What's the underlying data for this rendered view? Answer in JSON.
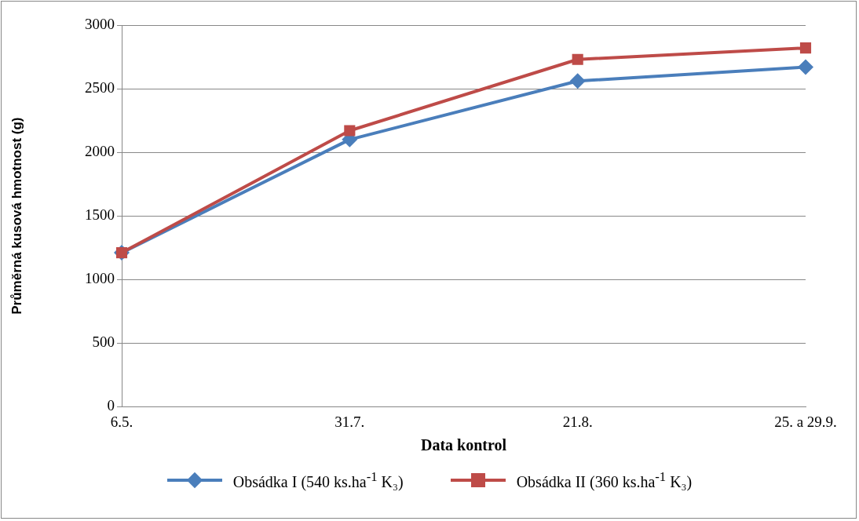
{
  "chart_data": {
    "type": "line",
    "xlabel": "Data kontrol",
    "ylabel": "Průměrná kusová hmotnost (g)",
    "categories": [
      "6.5.",
      "31.7.",
      "21.8.",
      "25. a 29.9."
    ],
    "series": [
      {
        "name": "Obsádka I (540 ks.ha$^{-1}$ K₃)",
        "color": "#4a7ebb",
        "marker": "diamond",
        "values": [
          1210,
          2100,
          2560,
          2670
        ]
      },
      {
        "name": "Obsádka II (360 ks.ha$^{-1}$ K₃)",
        "color": "#be4b48",
        "marker": "square",
        "values": [
          1210,
          2170,
          2730,
          2820
        ]
      }
    ],
    "ylim": [
      0,
      3000
    ],
    "yticks": [
      0,
      500,
      1000,
      1500,
      2000,
      2500,
      3000
    ],
    "grid": "y",
    "legend": "bottom",
    "line_style": "solid"
  }
}
